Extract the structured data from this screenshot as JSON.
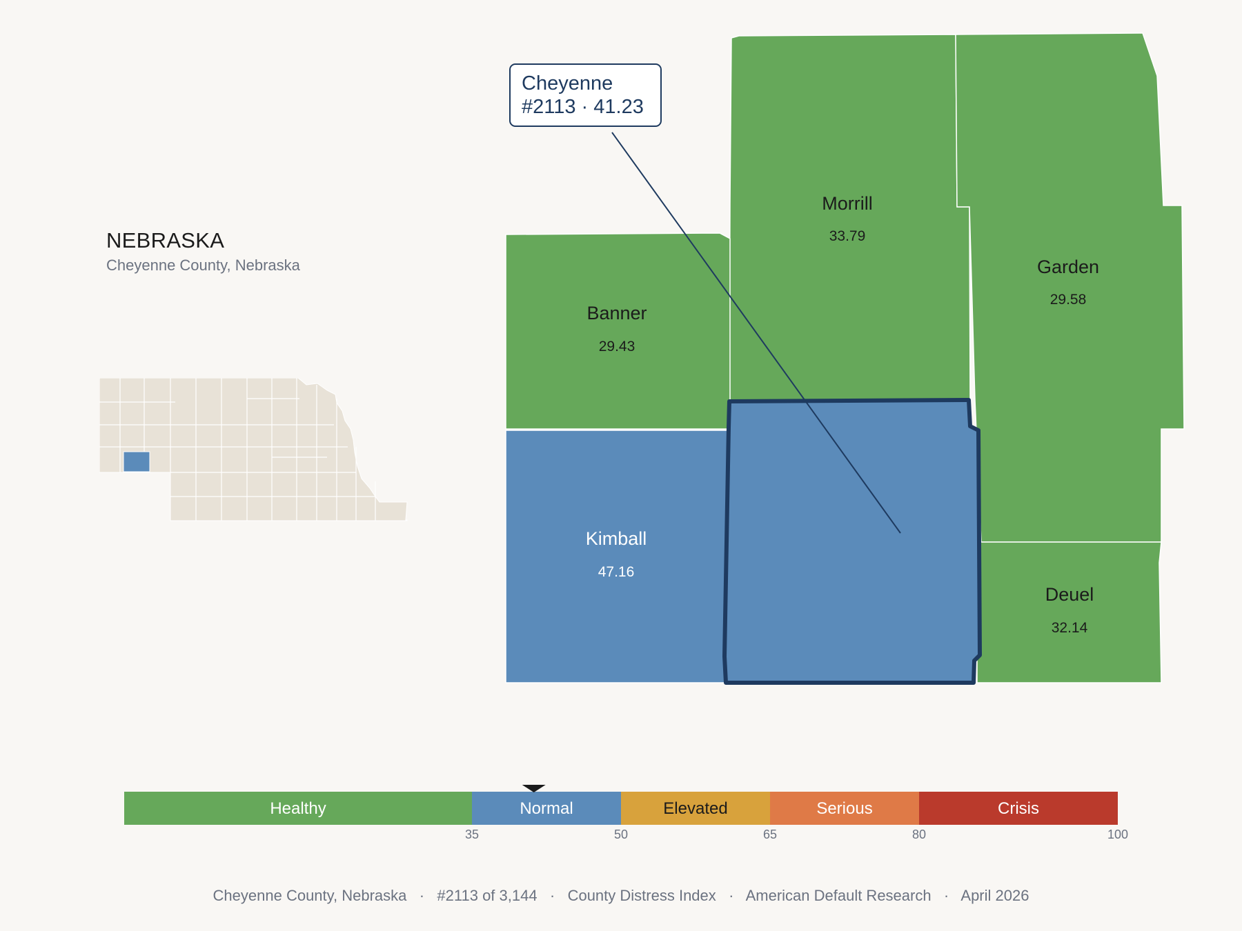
{
  "header": {
    "state": "NEBRASKA",
    "subtitle": "Cheyenne County, Nebraska"
  },
  "colors": {
    "healthy": "#66a85a",
    "normal": "#5b8bba",
    "elevated": "#d8a23c",
    "serious": "#df7a47",
    "crisis": "#ba3a2c",
    "highlight_outline": "#1e3a5f",
    "inset_base": "#e8e2d7"
  },
  "inset": {
    "label": "Nebraska locator map",
    "highlight": "Cheyenne"
  },
  "counties": [
    {
      "name": "Morrill",
      "value": "33.79",
      "category": "healthy"
    },
    {
      "name": "Garden",
      "value": "29.58",
      "category": "healthy"
    },
    {
      "name": "Banner",
      "value": "29.43",
      "category": "healthy"
    },
    {
      "name": "Kimball",
      "value": "47.16",
      "category": "normal"
    },
    {
      "name": "Deuel",
      "value": "32.14",
      "category": "healthy"
    },
    {
      "name": "Cheyenne",
      "value": "41.23",
      "category": "normal",
      "selected": true
    }
  ],
  "callout": {
    "line1": "Cheyenne",
    "line2": "#2113 · 41.23"
  },
  "legend": {
    "segments": [
      {
        "label": "Healthy",
        "from": 0,
        "to": 35,
        "color": "#66a85a",
        "text_color": "#ffffff"
      },
      {
        "label": "Normal",
        "from": 35,
        "to": 50,
        "color": "#5b8bba",
        "text_color": "#ffffff"
      },
      {
        "label": "Elevated",
        "from": 50,
        "to": 65,
        "color": "#d8a23c",
        "text_color": "#1b1b1b"
      },
      {
        "label": "Serious",
        "from": 65,
        "to": 80,
        "color": "#df7a47",
        "text_color": "#ffffff"
      },
      {
        "label": "Crisis",
        "from": 80,
        "to": 100,
        "color": "#ba3a2c",
        "text_color": "#ffffff"
      }
    ],
    "ticks": [
      "35",
      "50",
      "65",
      "80",
      "100"
    ],
    "marker_value": 41.23
  },
  "footer": {
    "county": "Cheyenne County, Nebraska",
    "rank": "#2113 of 3,144",
    "index": "County Distress Index",
    "source": "American Default Research",
    "date": "April 2026"
  }
}
